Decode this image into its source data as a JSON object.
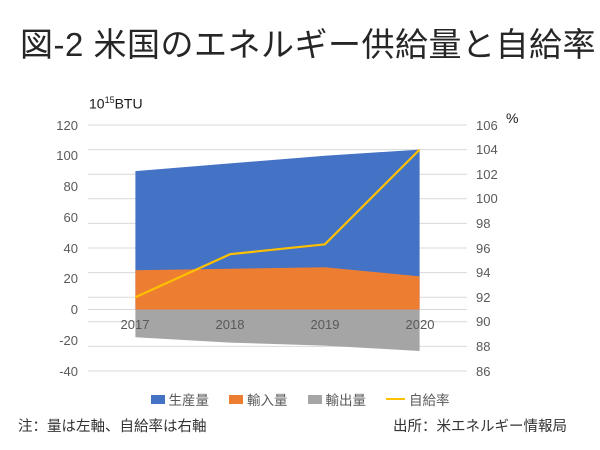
{
  "title": "図-2 米国のエネルギー供給量と自給率",
  "unit_left": {
    "base": "10",
    "exp": "15",
    "suffix": "BTU"
  },
  "unit_right": "%",
  "notes": {
    "left": "注：量は左軸、自給率は右軸",
    "right": "出所：米エネルギー情報局"
  },
  "colors": {
    "production": "#4472C4",
    "imports": "#ED7D31",
    "exports": "#A5A5A5",
    "self_sufficiency": "#FFC000",
    "gridline": "#D9D9D9",
    "axis_text": "#595959"
  },
  "chart_data": {
    "type": "area",
    "subtype": "overlapping areas from zero baseline plus line on secondary axis",
    "categories": [
      "2017",
      "2018",
      "2019",
      "2020"
    ],
    "series": [
      {
        "name": "生産量",
        "type": "area",
        "axis": "left",
        "color": "#4472C4",
        "values": [
          90,
          95,
          100,
          104
        ]
      },
      {
        "name": "輸入量",
        "type": "area",
        "axis": "left",
        "color": "#ED7D31",
        "values": [
          25.5,
          26.5,
          27.5,
          21.5
        ]
      },
      {
        "name": "輸出量",
        "type": "area",
        "axis": "left",
        "color": "#A5A5A5",
        "values": [
          -18,
          -21.5,
          -23.5,
          -27
        ]
      },
      {
        "name": "自給率",
        "type": "line",
        "axis": "right",
        "color": "#FFC000",
        "values": [
          92,
          95.5,
          96.3,
          104
        ]
      }
    ],
    "left_axis": {
      "label": "10^15 BTU",
      "min": -40,
      "max": 120,
      "step": 20
    },
    "right_axis": {
      "label": "%",
      "min": 86,
      "max": 106,
      "step": 2
    },
    "grid": "horizontal gridlines at every secondary-axis tick (86–106 by 2)",
    "legend_position": "bottom"
  }
}
